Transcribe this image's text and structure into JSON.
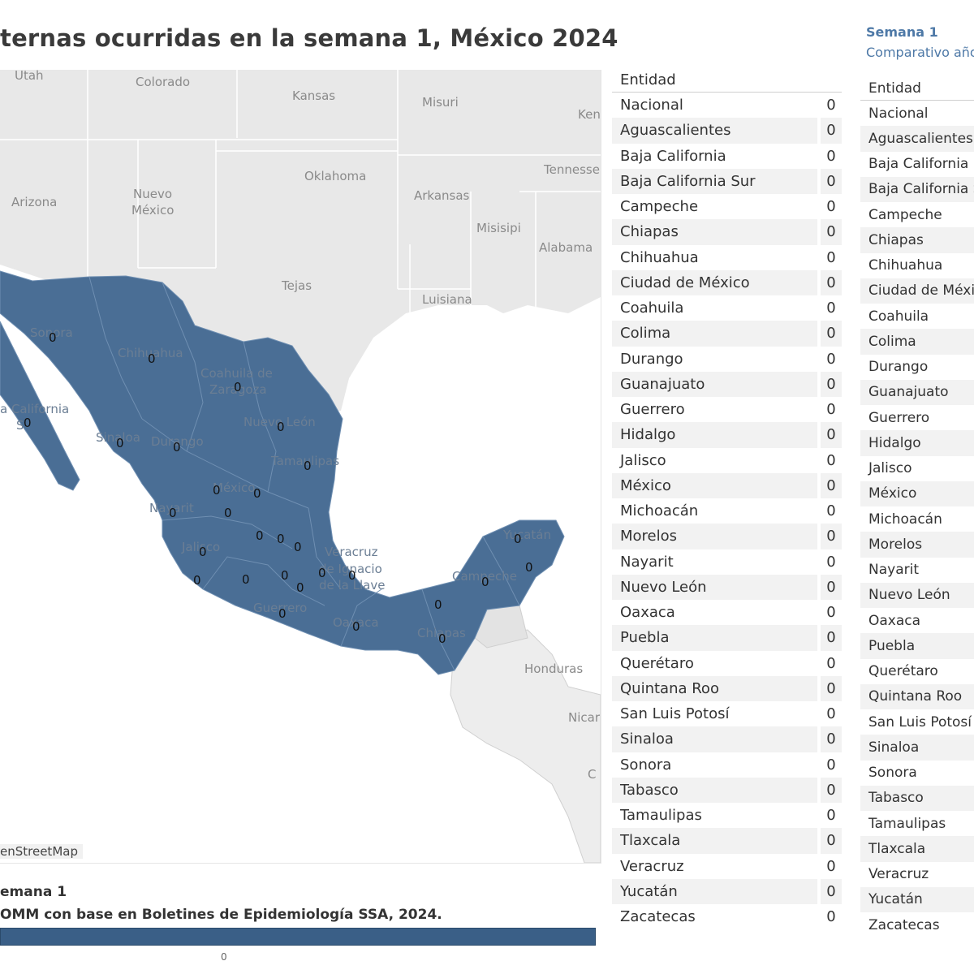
{
  "title": "ternas ocurridas en la semana 1, México 2024",
  "map": {
    "attribution": "enStreetMap",
    "country_label": "México",
    "us_states": [
      "Utah",
      "Colorado",
      "Kansas",
      "Misuri",
      "Ken",
      "Oklahoma",
      "Tennesse",
      "Arizona",
      "Nuevo",
      "México",
      "Arkansas",
      "Misisipi",
      "Alabama",
      "Tejas",
      "Luisiana"
    ],
    "central_america": [
      "Honduras",
      "Nicar",
      "C"
    ],
    "mx_labels": [
      "Sonora",
      "Chihuahua",
      "Coahuila de",
      "Zaragoza",
      "Nuevo León",
      "a California",
      "S",
      "Sinaloa",
      "Durango",
      "Tamaulipas",
      "Nayarit",
      "Jalisco",
      "Veracruz",
      "de Ignacio",
      "de la Llave",
      "Guerrero",
      "Oaxaca",
      "Chiapas",
      "Campeche",
      "Yucatán"
    ],
    "value_label": "0",
    "fill_color": "#4a6e95"
  },
  "footer": {
    "line1": "emana 1",
    "line2": "OMM con base en Boletines de Epidemiología SSA, 2024.",
    "legend_tick": "0"
  },
  "table": {
    "header": "Entidad",
    "rows": [
      {
        "name": "Nacional",
        "value": "0"
      },
      {
        "name": "Aguascalientes",
        "value": "0"
      },
      {
        "name": "Baja California",
        "value": "0"
      },
      {
        "name": "Baja California Sur",
        "value": "0"
      },
      {
        "name": "Campeche",
        "value": "0"
      },
      {
        "name": "Chiapas",
        "value": "0"
      },
      {
        "name": "Chihuahua",
        "value": "0"
      },
      {
        "name": "Ciudad de México",
        "value": "0"
      },
      {
        "name": "Coahuila",
        "value": "0"
      },
      {
        "name": "Colima",
        "value": "0"
      },
      {
        "name": "Durango",
        "value": "0"
      },
      {
        "name": "Guanajuato",
        "value": "0"
      },
      {
        "name": "Guerrero",
        "value": "0"
      },
      {
        "name": "Hidalgo",
        "value": "0"
      },
      {
        "name": "Jalisco",
        "value": "0"
      },
      {
        "name": "México",
        "value": "0"
      },
      {
        "name": "Michoacán",
        "value": "0"
      },
      {
        "name": "Morelos",
        "value": "0"
      },
      {
        "name": "Nayarit",
        "value": "0"
      },
      {
        "name": "Nuevo León",
        "value": "0"
      },
      {
        "name": "Oaxaca",
        "value": "0"
      },
      {
        "name": "Puebla",
        "value": "0"
      },
      {
        "name": "Querétaro",
        "value": "0"
      },
      {
        "name": "Quintana Roo",
        "value": "0"
      },
      {
        "name": "San Luis Potosí",
        "value": "0"
      },
      {
        "name": "Sinaloa",
        "value": "0"
      },
      {
        "name": "Sonora",
        "value": "0"
      },
      {
        "name": "Tabasco",
        "value": "0"
      },
      {
        "name": "Tamaulipas",
        "value": "0"
      },
      {
        "name": "Tlaxcala",
        "value": "0"
      },
      {
        "name": "Veracruz",
        "value": "0"
      },
      {
        "name": "Yucatán",
        "value": "0"
      },
      {
        "name": "Zacatecas",
        "value": "0"
      }
    ]
  },
  "side_panel": {
    "title": "Semana 1",
    "subtitle": "Comparativo año",
    "header": "Entidad",
    "rows": [
      "Nacional",
      "Aguascalientes",
      "Baja California",
      "Baja California S",
      "Campeche",
      "Chiapas",
      "Chihuahua",
      "Ciudad de México",
      "Coahuila",
      "Colima",
      "Durango",
      "Guanajuato",
      "Guerrero",
      "Hidalgo",
      "Jalisco",
      "México",
      "Michoacán",
      "Morelos",
      "Nayarit",
      "Nuevo León",
      "Oaxaca",
      "Puebla",
      "Querétaro",
      "Quintana Roo",
      "San Luis Potosí",
      "Sinaloa",
      "Sonora",
      "Tabasco",
      "Tamaulipas",
      "Tlaxcala",
      "Veracruz",
      "Yucatán",
      "Zacatecas"
    ]
  }
}
